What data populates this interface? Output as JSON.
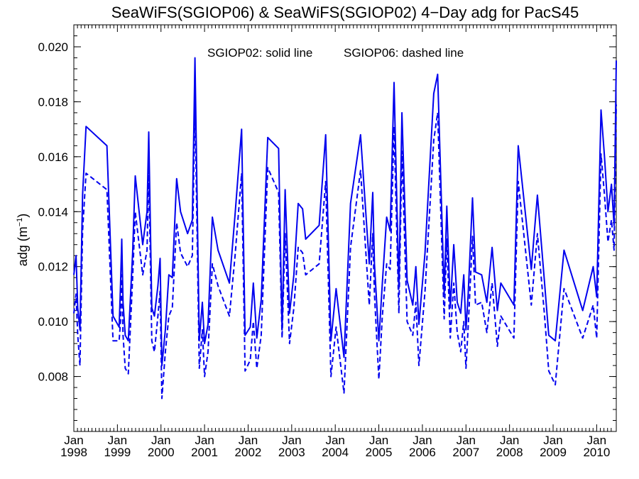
{
  "chart_data": {
    "type": "line",
    "title": "SeaWiFS(SGIOP06) & SeaWiFS(SGIOP02) 4−Day adg for PacS45",
    "annotation_solid": "SGIOP02: solid line",
    "annotation_dashed": "SGIOP06: dashed line",
    "ylabel": "adg (m",
    "ylabel_sup": "−1",
    "ylabel_close": ")",
    "xlim": [
      1998.0,
      2010.45
    ],
    "ylim": [
      0.006,
      0.0208
    ],
    "yticks": [
      {
        "value": 0.008,
        "label": "0.008"
      },
      {
        "value": 0.01,
        "label": "0.010"
      },
      {
        "value": 0.012,
        "label": "0.012"
      },
      {
        "value": 0.014,
        "label": "0.014"
      },
      {
        "value": 0.016,
        "label": "0.016"
      },
      {
        "value": 0.018,
        "label": "0.018"
      },
      {
        "value": 0.02,
        "label": "0.020"
      }
    ],
    "xticks": [
      {
        "value": 1998,
        "month": "Jan",
        "year": "1998"
      },
      {
        "value": 1999,
        "month": "Jan",
        "year": "1999"
      },
      {
        "value": 2000,
        "month": "Jan",
        "year": "2000"
      },
      {
        "value": 2001,
        "month": "Jan",
        "year": "2001"
      },
      {
        "value": 2002,
        "month": "Jan",
        "year": "2002"
      },
      {
        "value": 2003,
        "month": "Jan",
        "year": "2003"
      },
      {
        "value": 2004,
        "month": "Jan",
        "year": "2004"
      },
      {
        "value": 2005,
        "month": "Jan",
        "year": "2005"
      },
      {
        "value": 2006,
        "month": "Jan",
        "year": "2006"
      },
      {
        "value": 2007,
        "month": "Jan",
        "year": "2007"
      },
      {
        "value": 2008,
        "month": "Jan",
        "year": "2008"
      },
      {
        "value": 2009,
        "month": "Jan",
        "year": "2009"
      },
      {
        "value": 2010,
        "month": "Jan",
        "year": "2010"
      }
    ],
    "line_color": "#0000ee",
    "series": [
      {
        "name": "SGIOP02",
        "style": "solid",
        "points": [
          [
            1998.0,
            0.0117
          ],
          [
            1998.05,
            0.0124
          ],
          [
            1998.09,
            0.0105
          ],
          [
            1998.14,
            0.0097
          ],
          [
            1998.2,
            0.0146
          ],
          [
            1998.28,
            0.0171
          ],
          [
            1998.76,
            0.0164
          ],
          [
            1998.9,
            0.0102
          ],
          [
            1999.04,
            0.0098
          ],
          [
            1999.07,
            0.0113
          ],
          [
            1999.1,
            0.013
          ],
          [
            1999.13,
            0.0107
          ],
          [
            1999.18,
            0.0095
          ],
          [
            1999.25,
            0.0093
          ],
          [
            1999.35,
            0.0125
          ],
          [
            1999.41,
            0.0153
          ],
          [
            1999.58,
            0.0128
          ],
          [
            1999.68,
            0.014
          ],
          [
            1999.72,
            0.0169
          ],
          [
            1999.79,
            0.0105
          ],
          [
            1999.85,
            0.0102
          ],
          [
            1999.93,
            0.0113
          ],
          [
            1999.98,
            0.0123
          ],
          [
            2000.02,
            0.0084
          ],
          [
            2000.1,
            0.0097
          ],
          [
            2000.18,
            0.0117
          ],
          [
            2000.26,
            0.0116
          ],
          [
            2000.36,
            0.0152
          ],
          [
            2000.45,
            0.014
          ],
          [
            2000.61,
            0.0132
          ],
          [
            2000.72,
            0.0137
          ],
          [
            2000.78,
            0.0196
          ],
          [
            2000.88,
            0.0093
          ],
          [
            2000.95,
            0.0107
          ],
          [
            2001.0,
            0.0092
          ],
          [
            2001.08,
            0.0099
          ],
          [
            2001.18,
            0.0138
          ],
          [
            2001.31,
            0.0126
          ],
          [
            2001.57,
            0.0114
          ],
          [
            2001.7,
            0.0139
          ],
          [
            2001.85,
            0.017
          ],
          [
            2001.93,
            0.0095
          ],
          [
            2002.05,
            0.0098
          ],
          [
            2002.12,
            0.0114
          ],
          [
            2002.2,
            0.0094
          ],
          [
            2002.3,
            0.0108
          ],
          [
            2002.45,
            0.0167
          ],
          [
            2002.7,
            0.0163
          ],
          [
            2002.78,
            0.0097
          ],
          [
            2002.85,
            0.0148
          ],
          [
            2002.95,
            0.0103
          ],
          [
            2003.05,
            0.0117
          ],
          [
            2003.15,
            0.0143
          ],
          [
            2003.25,
            0.0141
          ],
          [
            2003.32,
            0.013
          ],
          [
            2003.63,
            0.0135
          ],
          [
            2003.78,
            0.0168
          ],
          [
            2003.9,
            0.0093
          ],
          [
            2004.02,
            0.0112
          ],
          [
            2004.2,
            0.0087
          ],
          [
            2004.35,
            0.0143
          ],
          [
            2004.58,
            0.0168
          ],
          [
            2004.78,
            0.0121
          ],
          [
            2004.86,
            0.0147
          ],
          [
            2004.9,
            0.0121
          ],
          [
            2005.0,
            0.0093
          ],
          [
            2005.08,
            0.0114
          ],
          [
            2005.18,
            0.0138
          ],
          [
            2005.26,
            0.0133
          ],
          [
            2005.35,
            0.0187
          ],
          [
            2005.46,
            0.0112
          ],
          [
            2005.53,
            0.0176
          ],
          [
            2005.65,
            0.0115
          ],
          [
            2005.78,
            0.0106
          ],
          [
            2005.85,
            0.012
          ],
          [
            2005.92,
            0.0099
          ],
          [
            2006.06,
            0.0125
          ],
          [
            2006.26,
            0.0183
          ],
          [
            2006.35,
            0.019
          ],
          [
            2006.5,
            0.011
          ],
          [
            2006.56,
            0.0142
          ],
          [
            2006.64,
            0.0105
          ],
          [
            2006.72,
            0.0128
          ],
          [
            2006.8,
            0.0107
          ],
          [
            2006.88,
            0.0103
          ],
          [
            2006.95,
            0.0117
          ],
          [
            2007.0,
            0.0097
          ],
          [
            2007.05,
            0.011
          ],
          [
            2007.15,
            0.0145
          ],
          [
            2007.22,
            0.0118
          ],
          [
            2007.36,
            0.0117
          ],
          [
            2007.48,
            0.0107
          ],
          [
            2007.6,
            0.0127
          ],
          [
            2007.72,
            0.0104
          ],
          [
            2007.8,
            0.0114
          ],
          [
            2008.1,
            0.0106
          ],
          [
            2008.2,
            0.0164
          ],
          [
            2008.5,
            0.0119
          ],
          [
            2008.64,
            0.0146
          ],
          [
            2008.8,
            0.0115
          ],
          [
            2008.9,
            0.0095
          ],
          [
            2009.05,
            0.0093
          ],
          [
            2009.25,
            0.0126
          ],
          [
            2009.68,
            0.0104
          ],
          [
            2009.92,
            0.012
          ],
          [
            2010.0,
            0.0109
          ],
          [
            2010.1,
            0.0177
          ],
          [
            2010.18,
            0.016
          ],
          [
            2010.26,
            0.014
          ],
          [
            2010.34,
            0.015
          ],
          [
            2010.4,
            0.0135
          ],
          [
            2010.45,
            0.0195
          ]
        ]
      },
      {
        "name": "SGIOP06",
        "style": "dashed",
        "points": [
          [
            1998.0,
            0.0103
          ],
          [
            1998.05,
            0.011
          ],
          [
            1998.09,
            0.0095
          ],
          [
            1998.14,
            0.0084
          ],
          [
            1998.2,
            0.0133
          ],
          [
            1998.28,
            0.0154
          ],
          [
            1998.76,
            0.0148
          ],
          [
            1998.9,
            0.0093
          ],
          [
            1999.04,
            0.0093
          ],
          [
            1999.07,
            0.01
          ],
          [
            1999.1,
            0.0117
          ],
          [
            1999.13,
            0.0095
          ],
          [
            1999.18,
            0.0083
          ],
          [
            1999.25,
            0.0081
          ],
          [
            1999.35,
            0.0116
          ],
          [
            1999.41,
            0.014
          ],
          [
            1999.58,
            0.0117
          ],
          [
            1999.68,
            0.0126
          ],
          [
            1999.72,
            0.0155
          ],
          [
            1999.79,
            0.0093
          ],
          [
            1999.85,
            0.0089
          ],
          [
            1999.93,
            0.0102
          ],
          [
            1999.98,
            0.0111
          ],
          [
            2000.02,
            0.0072
          ],
          [
            2000.1,
            0.0089
          ],
          [
            2000.18,
            0.0102
          ],
          [
            2000.26,
            0.0105
          ],
          [
            2000.36,
            0.0136
          ],
          [
            2000.45,
            0.0125
          ],
          [
            2000.61,
            0.012
          ],
          [
            2000.72,
            0.0124
          ],
          [
            2000.78,
            0.018
          ],
          [
            2000.88,
            0.0083
          ],
          [
            2000.95,
            0.0097
          ],
          [
            2001.0,
            0.008
          ],
          [
            2001.08,
            0.0089
          ],
          [
            2001.18,
            0.0121
          ],
          [
            2001.31,
            0.0113
          ],
          [
            2001.57,
            0.0102
          ],
          [
            2001.7,
            0.0124
          ],
          [
            2001.85,
            0.0154
          ],
          [
            2001.93,
            0.0082
          ],
          [
            2002.05,
            0.0086
          ],
          [
            2002.12,
            0.01
          ],
          [
            2002.2,
            0.0083
          ],
          [
            2002.3,
            0.0095
          ],
          [
            2002.45,
            0.0156
          ],
          [
            2002.7,
            0.0147
          ],
          [
            2002.78,
            0.0094
          ],
          [
            2002.85,
            0.0132
          ],
          [
            2002.95,
            0.0092
          ],
          [
            2003.05,
            0.0105
          ],
          [
            2003.15,
            0.0127
          ],
          [
            2003.25,
            0.0125
          ],
          [
            2003.32,
            0.0117
          ],
          [
            2003.63,
            0.0121
          ],
          [
            2003.78,
            0.0151
          ],
          [
            2003.9,
            0.008
          ],
          [
            2004.02,
            0.0098
          ],
          [
            2004.2,
            0.0074
          ],
          [
            2004.35,
            0.0127
          ],
          [
            2004.58,
            0.0155
          ],
          [
            2004.78,
            0.0106
          ],
          [
            2004.86,
            0.0132
          ],
          [
            2004.9,
            0.011
          ],
          [
            2005.0,
            0.0079
          ],
          [
            2005.08,
            0.0102
          ],
          [
            2005.18,
            0.0121
          ],
          [
            2005.26,
            0.0119
          ],
          [
            2005.35,
            0.0171
          ],
          [
            2005.46,
            0.0103
          ],
          [
            2005.53,
            0.0162
          ],
          [
            2005.65,
            0.01
          ],
          [
            2005.78,
            0.0095
          ],
          [
            2005.85,
            0.0107
          ],
          [
            2005.92,
            0.0084
          ],
          [
            2006.06,
            0.0111
          ],
          [
            2006.26,
            0.0166
          ],
          [
            2006.35,
            0.0176
          ],
          [
            2006.5,
            0.0101
          ],
          [
            2006.56,
            0.013
          ],
          [
            2006.64,
            0.0094
          ],
          [
            2006.72,
            0.0114
          ],
          [
            2006.8,
            0.0096
          ],
          [
            2006.88,
            0.0089
          ],
          [
            2006.95,
            0.01
          ],
          [
            2007.0,
            0.0083
          ],
          [
            2007.05,
            0.0098
          ],
          [
            2007.15,
            0.0131
          ],
          [
            2007.22,
            0.0106
          ],
          [
            2007.36,
            0.0107
          ],
          [
            2007.48,
            0.0096
          ],
          [
            2007.6,
            0.0114
          ],
          [
            2007.72,
            0.0091
          ],
          [
            2007.8,
            0.0102
          ],
          [
            2008.1,
            0.0094
          ],
          [
            2008.2,
            0.0151
          ],
          [
            2008.5,
            0.0106
          ],
          [
            2008.64,
            0.0132
          ],
          [
            2008.8,
            0.0103
          ],
          [
            2008.9,
            0.0082
          ],
          [
            2009.05,
            0.0077
          ],
          [
            2009.25,
            0.0112
          ],
          [
            2009.68,
            0.0094
          ],
          [
            2009.92,
            0.0106
          ],
          [
            2010.0,
            0.0094
          ],
          [
            2010.1,
            0.0161
          ],
          [
            2010.18,
            0.0146
          ],
          [
            2010.26,
            0.0129
          ],
          [
            2010.34,
            0.0137
          ],
          [
            2010.4,
            0.0126
          ],
          [
            2010.45,
            0.0179
          ]
        ]
      }
    ]
  }
}
